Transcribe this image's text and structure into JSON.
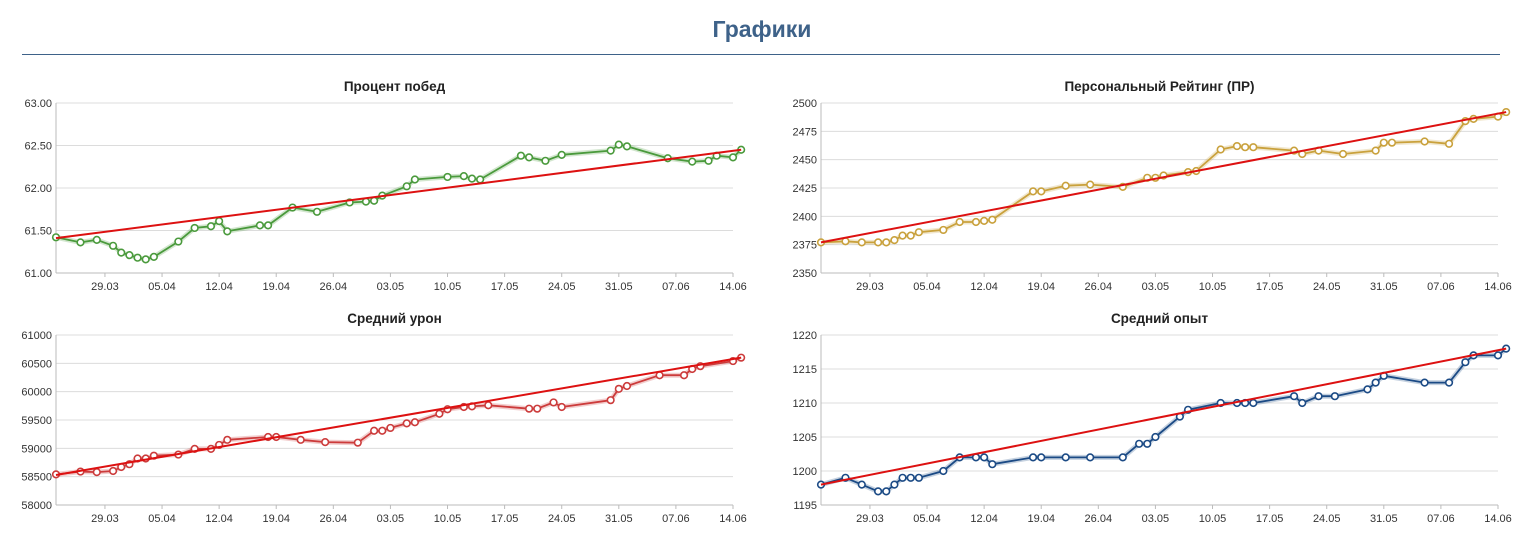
{
  "page": {
    "title": "Графики"
  },
  "chart_data": [
    {
      "type": "line",
      "title": "Процент побед",
      "xlabel": "",
      "ylabel": "",
      "x_ticks": [
        "29.03",
        "05.04",
        "12.04",
        "19.04",
        "26.04",
        "03.05",
        "10.05",
        "17.05",
        "24.05",
        "31.05",
        "07.06",
        "14.06"
      ],
      "x_range": [
        "23.03",
        "14.06"
      ],
      "ylim": [
        61.0,
        63.0
      ],
      "y_ticks": [
        "61.00",
        "61.50",
        "62.00",
        "62.50",
        "63.00"
      ],
      "grid": true,
      "legend": false,
      "series": [
        {
          "color": "#4a9a3c",
          "points": [
            [
              "23.03",
              61.42
            ],
            [
              "26.03",
              61.36
            ],
            [
              "28.03",
              61.39
            ],
            [
              "30.03",
              61.32
            ],
            [
              "31.03",
              61.24
            ],
            [
              "01.04",
              61.21
            ],
            [
              "02.04",
              61.18
            ],
            [
              "03.04",
              61.16
            ],
            [
              "04.04",
              61.19
            ],
            [
              "07.04",
              61.37
            ],
            [
              "09.04",
              61.53
            ],
            [
              "11.04",
              61.55
            ],
            [
              "12.04",
              61.61
            ],
            [
              "13.04",
              61.49
            ],
            [
              "17.04",
              61.56
            ],
            [
              "18.04",
              61.56
            ],
            [
              "21.04",
              61.77
            ],
            [
              "24.04",
              61.72
            ],
            [
              "28.04",
              61.83
            ],
            [
              "30.04",
              61.84
            ],
            [
              "01.05",
              61.85
            ],
            [
              "02.05",
              61.91
            ],
            [
              "05.05",
              62.02
            ],
            [
              "06.05",
              62.1
            ],
            [
              "10.05",
              62.13
            ],
            [
              "12.05",
              62.14
            ],
            [
              "13.05",
              62.11
            ],
            [
              "14.05",
              62.1
            ],
            [
              "19.05",
              62.38
            ],
            [
              "20.05",
              62.36
            ],
            [
              "22.05",
              62.32
            ],
            [
              "24.05",
              62.39
            ],
            [
              "30.05",
              62.44
            ],
            [
              "31.05",
              62.51
            ],
            [
              "01.06",
              62.49
            ],
            [
              "06.06",
              62.35
            ],
            [
              "09.06",
              62.31
            ],
            [
              "11.06",
              62.32
            ],
            [
              "12.06",
              62.38
            ],
            [
              "14.06",
              62.36
            ],
            [
              "15.06",
              62.45
            ]
          ]
        }
      ],
      "trend": {
        "color": "#dd1111",
        "from": [
          "23.03",
          61.41
        ],
        "to": [
          "15.06",
          62.45
        ]
      }
    },
    {
      "type": "line",
      "title": "Персональный Рейтинг (ПР)",
      "xlabel": "",
      "ylabel": "",
      "x_ticks": [
        "29.03",
        "05.04",
        "12.04",
        "19.04",
        "26.04",
        "03.05",
        "10.05",
        "17.05",
        "24.05",
        "31.05",
        "07.06",
        "14.06"
      ],
      "x_range": [
        "23.03",
        "14.06"
      ],
      "ylim": [
        2350,
        2500
      ],
      "y_ticks": [
        "2350",
        "2375",
        "2400",
        "2425",
        "2450",
        "2475",
        "2500"
      ],
      "grid": true,
      "legend": false,
      "series": [
        {
          "color": "#c9a13c",
          "points": [
            [
              "23.03",
              2377
            ],
            [
              "26.03",
              2378
            ],
            [
              "28.03",
              2377
            ],
            [
              "30.03",
              2377
            ],
            [
              "31.03",
              2377
            ],
            [
              "01.04",
              2379
            ],
            [
              "02.04",
              2383
            ],
            [
              "03.04",
              2383
            ],
            [
              "04.04",
              2386
            ],
            [
              "07.04",
              2388
            ],
            [
              "09.04",
              2395
            ],
            [
              "11.04",
              2395
            ],
            [
              "12.04",
              2396
            ],
            [
              "13.04",
              2397
            ],
            [
              "18.04",
              2422
            ],
            [
              "19.04",
              2422
            ],
            [
              "22.04",
              2427
            ],
            [
              "25.04",
              2428
            ],
            [
              "29.04",
              2426
            ],
            [
              "02.05",
              2434
            ],
            [
              "03.05",
              2434
            ],
            [
              "04.05",
              2436
            ],
            [
              "07.05",
              2439
            ],
            [
              "08.05",
              2440
            ],
            [
              "11.05",
              2459
            ],
            [
              "13.05",
              2462
            ],
            [
              "14.05",
              2461
            ],
            [
              "15.05",
              2461
            ],
            [
              "20.05",
              2458
            ],
            [
              "21.05",
              2455
            ],
            [
              "23.05",
              2458
            ],
            [
              "26.05",
              2455
            ],
            [
              "30.05",
              2458
            ],
            [
              "31.05",
              2465
            ],
            [
              "01.06",
              2465
            ],
            [
              "05.06",
              2466
            ],
            [
              "08.06",
              2464
            ],
            [
              "10.06",
              2484
            ],
            [
              "11.06",
              2486
            ],
            [
              "14.06",
              2488
            ],
            [
              "15.06",
              2492
            ]
          ]
        }
      ],
      "trend": {
        "color": "#dd1111",
        "from": [
          "23.03",
          2377
        ],
        "to": [
          "15.06",
          2492
        ]
      }
    },
    {
      "type": "line",
      "title": "Средний урон",
      "xlabel": "",
      "ylabel": "",
      "x_ticks": [
        "29.03",
        "05.04",
        "12.04",
        "19.04",
        "26.04",
        "03.05",
        "10.05",
        "17.05",
        "24.05",
        "31.05",
        "07.06",
        "14.06"
      ],
      "x_range": [
        "23.03",
        "14.06"
      ],
      "ylim": [
        58000,
        61000
      ],
      "y_ticks": [
        "58000",
        "58500",
        "59000",
        "59500",
        "60000",
        "60500",
        "61000"
      ],
      "grid": true,
      "legend": false,
      "series": [
        {
          "color": "#cc3b3b",
          "points": [
            [
              "23.03",
              58540
            ],
            [
              "26.03",
              58590
            ],
            [
              "28.03",
              58580
            ],
            [
              "30.03",
              58600
            ],
            [
              "31.03",
              58670
            ],
            [
              "01.04",
              58720
            ],
            [
              "02.04",
              58820
            ],
            [
              "03.04",
              58820
            ],
            [
              "04.04",
              58870
            ],
            [
              "07.04",
              58890
            ],
            [
              "09.04",
              58990
            ],
            [
              "11.04",
              58990
            ],
            [
              "12.04",
              59060
            ],
            [
              "13.04",
              59150
            ],
            [
              "18.04",
              59200
            ],
            [
              "19.04",
              59200
            ],
            [
              "22.04",
              59150
            ],
            [
              "25.04",
              59110
            ],
            [
              "29.04",
              59100
            ],
            [
              "01.05",
              59310
            ],
            [
              "02.05",
              59310
            ],
            [
              "03.05",
              59360
            ],
            [
              "05.05",
              59440
            ],
            [
              "06.05",
              59460
            ],
            [
              "09.05",
              59610
            ],
            [
              "10.05",
              59690
            ],
            [
              "12.05",
              59730
            ],
            [
              "13.05",
              59740
            ],
            [
              "15.05",
              59760
            ],
            [
              "20.05",
              59700
            ],
            [
              "21.05",
              59700
            ],
            [
              "23.05",
              59810
            ],
            [
              "24.05",
              59730
            ],
            [
              "30.05",
              59850
            ],
            [
              "31.05",
              60050
            ],
            [
              "01.06",
              60100
            ],
            [
              "05.06",
              60290
            ],
            [
              "08.06",
              60290
            ],
            [
              "09.06",
              60400
            ],
            [
              "10.06",
              60450
            ],
            [
              "14.06",
              60540
            ],
            [
              "15.06",
              60600
            ]
          ]
        }
      ],
      "trend": {
        "color": "#dd1111",
        "from": [
          "23.03",
          58530
        ],
        "to": [
          "15.06",
          60600
        ]
      }
    },
    {
      "type": "line",
      "title": "Средний опыт",
      "xlabel": "",
      "ylabel": "",
      "x_ticks": [
        "29.03",
        "05.04",
        "12.04",
        "19.04",
        "26.04",
        "03.05",
        "10.05",
        "17.05",
        "24.05",
        "31.05",
        "07.06",
        "14.06"
      ],
      "x_range": [
        "23.03",
        "14.06"
      ],
      "ylim": [
        1195,
        1220
      ],
      "y_ticks": [
        "1195",
        "1200",
        "1205",
        "1210",
        "1215",
        "1220"
      ],
      "grid": true,
      "legend": false,
      "series": [
        {
          "color": "#1b4a85",
          "points": [
            [
              "23.03",
              1198
            ],
            [
              "26.03",
              1199
            ],
            [
              "28.03",
              1198
            ],
            [
              "30.03",
              1197
            ],
            [
              "31.03",
              1197
            ],
            [
              "01.04",
              1198
            ],
            [
              "02.04",
              1199
            ],
            [
              "03.04",
              1199
            ],
            [
              "04.04",
              1199
            ],
            [
              "07.04",
              1200
            ],
            [
              "09.04",
              1202
            ],
            [
              "11.04",
              1202
            ],
            [
              "12.04",
              1202
            ],
            [
              "13.04",
              1201
            ],
            [
              "18.04",
              1202
            ],
            [
              "19.04",
              1202
            ],
            [
              "22.04",
              1202
            ],
            [
              "25.04",
              1202
            ],
            [
              "29.04",
              1202
            ],
            [
              "01.05",
              1204
            ],
            [
              "02.05",
              1204
            ],
            [
              "03.05",
              1205
            ],
            [
              "06.05",
              1208
            ],
            [
              "07.05",
              1209
            ],
            [
              "11.05",
              1210
            ],
            [
              "13.05",
              1210
            ],
            [
              "14.05",
              1210
            ],
            [
              "15.05",
              1210
            ],
            [
              "20.05",
              1211
            ],
            [
              "21.05",
              1210
            ],
            [
              "23.05",
              1211
            ],
            [
              "25.05",
              1211
            ],
            [
              "29.05",
              1212
            ],
            [
              "30.05",
              1213
            ],
            [
              "31.05",
              1214
            ],
            [
              "05.06",
              1213
            ],
            [
              "08.06",
              1213
            ],
            [
              "10.06",
              1216
            ],
            [
              "11.06",
              1217
            ],
            [
              "14.06",
              1217
            ],
            [
              "15.06",
              1218
            ]
          ]
        }
      ],
      "trend": {
        "color": "#dd1111",
        "from": [
          "23.03",
          1198
        ],
        "to": [
          "15.06",
          1218
        ]
      }
    }
  ]
}
